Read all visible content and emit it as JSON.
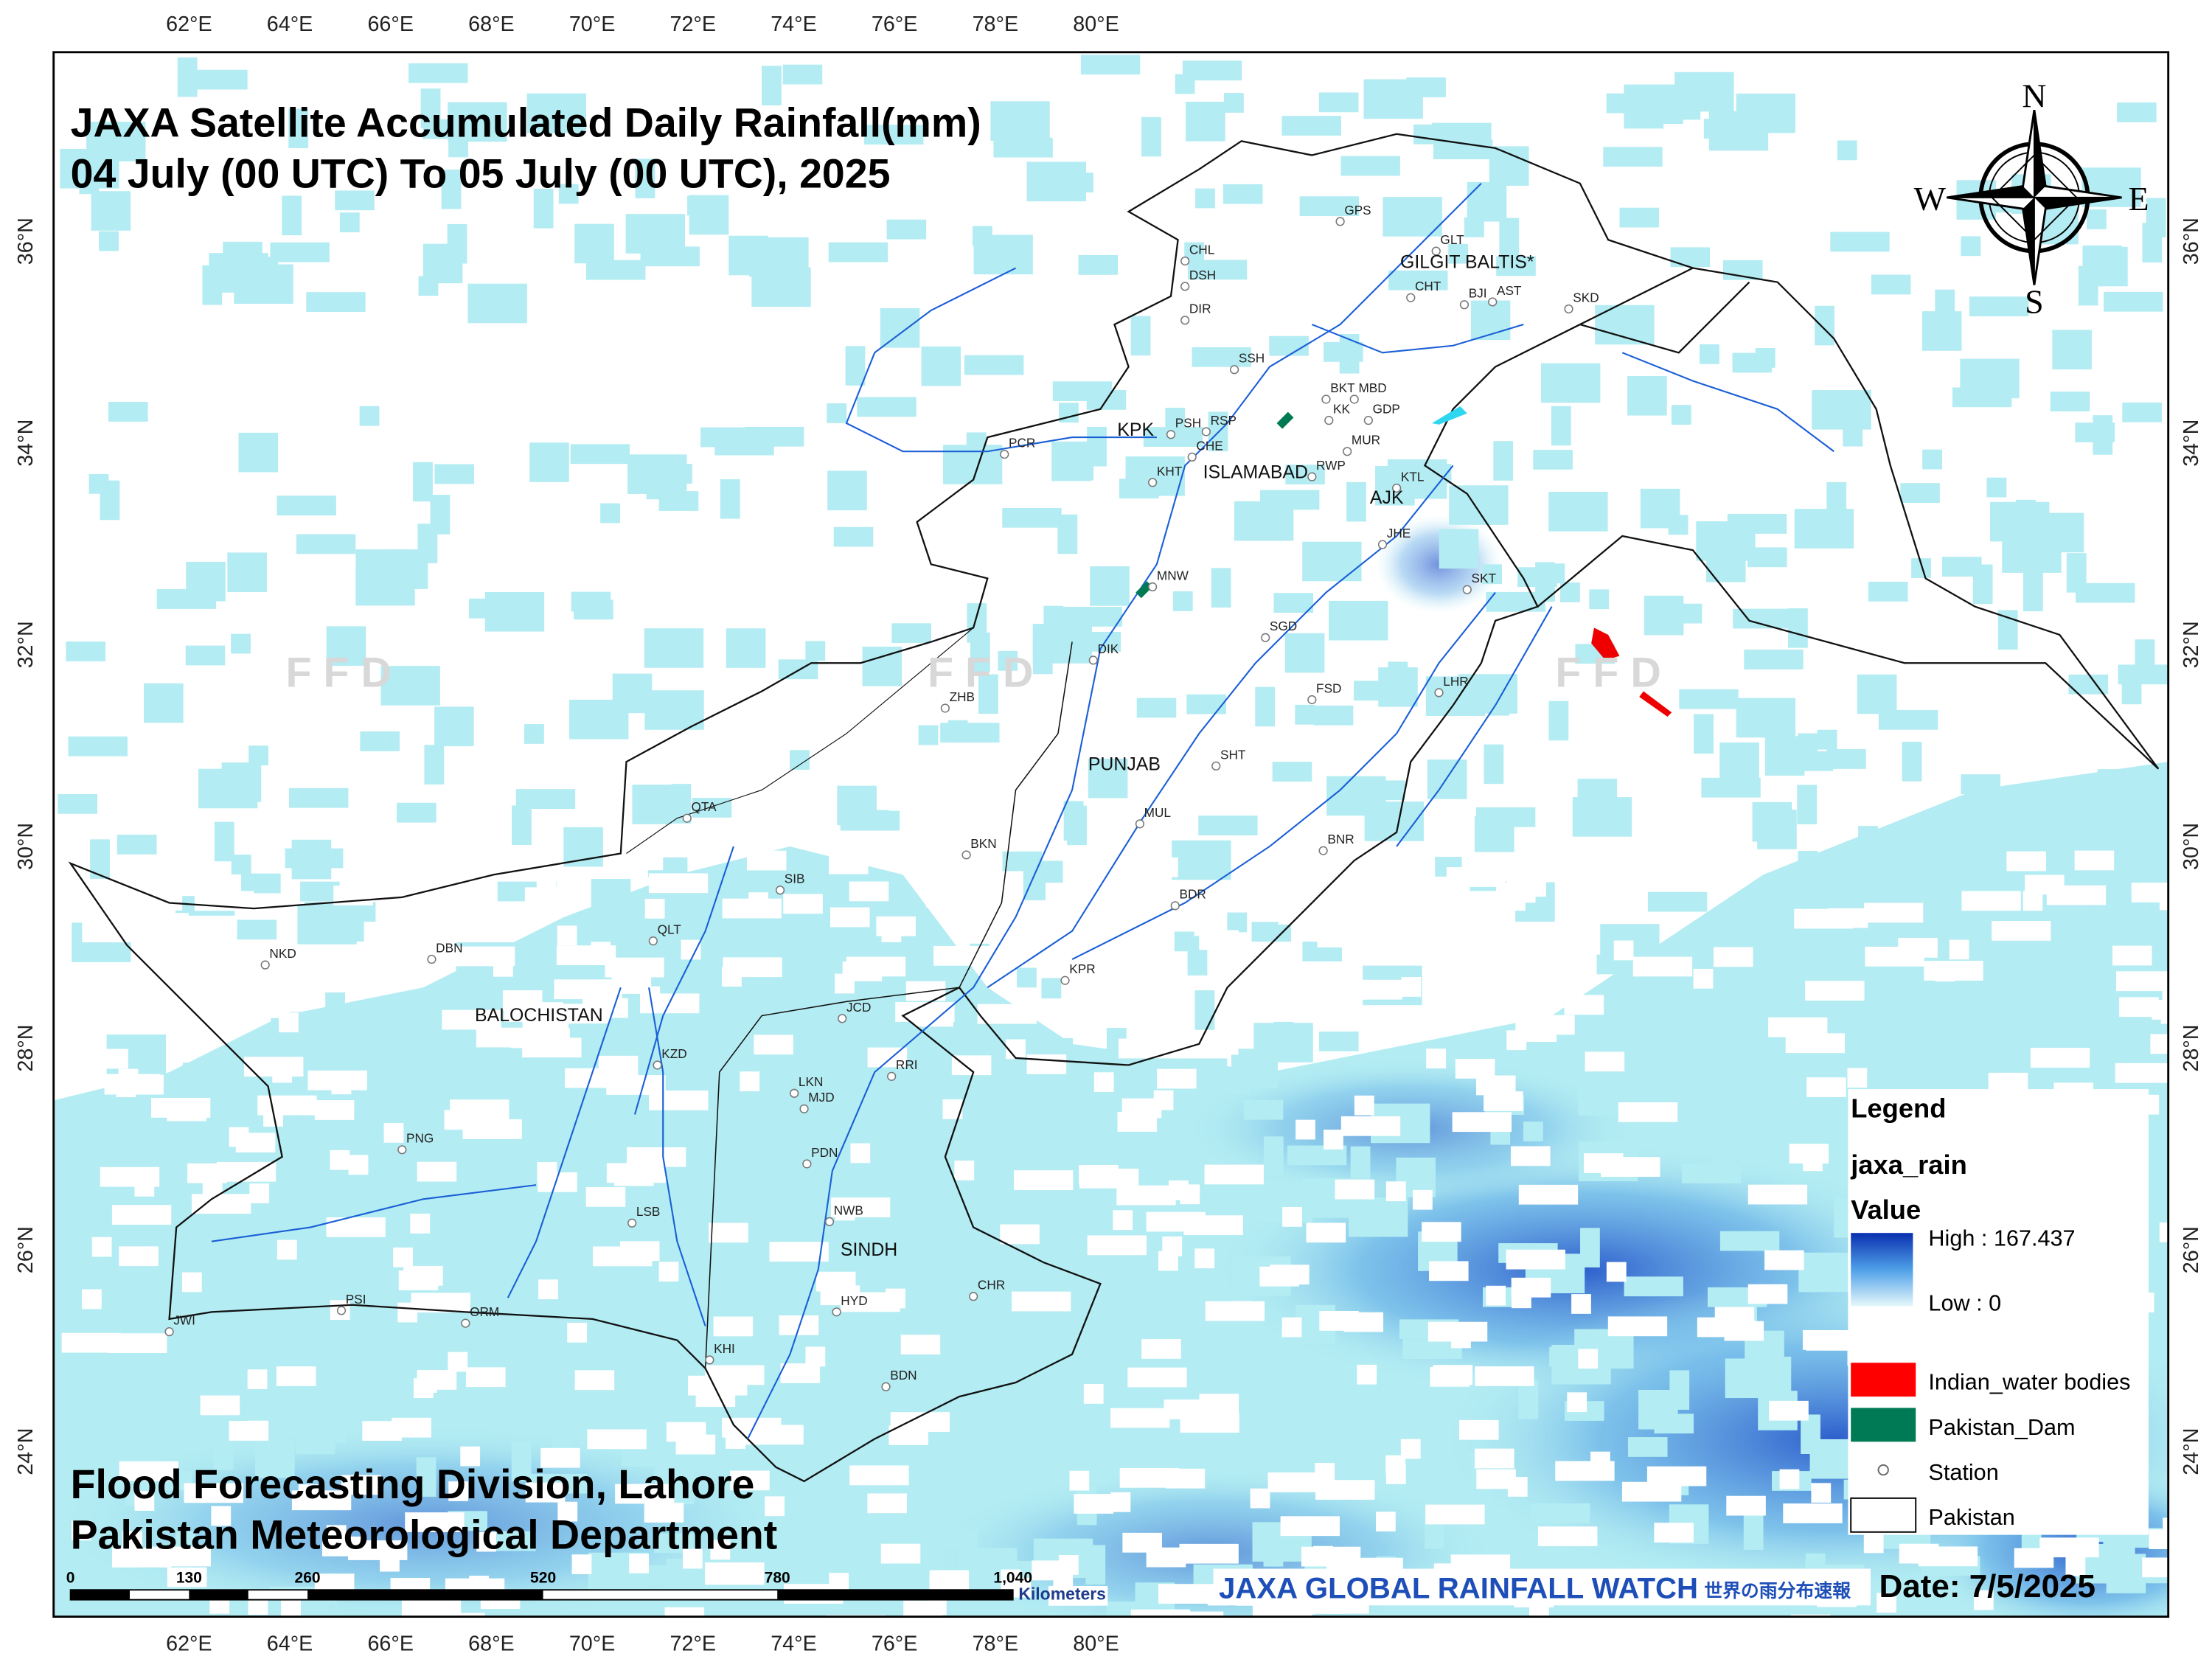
{
  "title": {
    "line1": "JAXA Satellite Accumulated Daily Rainfall(mm)",
    "line2": "04 July (00 UTC) To 05 July (00 UTC), 2025"
  },
  "axes": {
    "lon_top": [
      "62°E",
      "64°E",
      "66°E",
      "68°E",
      "70°E",
      "72°E",
      "74°E",
      "76°E",
      "78°E",
      "80°E"
    ],
    "lon_bottom": [
      "62°E",
      "64°E",
      "66°E",
      "68°E",
      "70°E",
      "72°E",
      "74°E",
      "76°E",
      "78°E",
      "80°E"
    ],
    "lat_left": [
      "36°N",
      "34°N",
      "32°N",
      "30°N",
      "28°N",
      "26°N",
      "24°N"
    ],
    "lat_right": [
      "36°N",
      "34°N",
      "32°N",
      "30°N",
      "28°N",
      "26°N",
      "24°N"
    ]
  },
  "watermarks": [
    "F F D",
    "F F D",
    "F F D"
  ],
  "regions": [
    "GILGIT BALTIS*",
    "KPK",
    "ISLAMABAD",
    "AJK",
    "PUNJAB",
    "BALOCHISTAN",
    "SINDH"
  ],
  "stations": [
    "GPS",
    "GLT",
    "CHT",
    "BJI",
    "AST",
    "SKD",
    "CHL",
    "DSH",
    "DIR",
    "SSH",
    "BKT",
    "MBD",
    "KK",
    "GDP",
    "RSP",
    "PSH",
    "MUR",
    "CHE",
    "KHT",
    "RWP",
    "PCR",
    "KTL",
    "JHE",
    "SKT",
    "MNW",
    "DIK",
    "SGD",
    "ZHB",
    "FSD",
    "LHR",
    "SHT",
    "QTA",
    "MUL",
    "BKN",
    "BNR",
    "SIB",
    "BDR",
    "QLT",
    "NKD",
    "DBN",
    "KPR",
    "JCD",
    "KZD",
    "RRI",
    "LKN",
    "MJD",
    "PNG",
    "PDN",
    "LSB",
    "NWB",
    "PSI",
    "ORM",
    "JWI",
    "HYD",
    "CHR",
    "KHI",
    "BDN"
  ],
  "compass": {
    "n": "N",
    "e": "E",
    "s": "S",
    "w": "W"
  },
  "legend": {
    "title": "Legend",
    "layer": "jaxa_rain",
    "field": "Value",
    "high": "High : 167.437",
    "low": "Low : 0",
    "items": [
      "Indian_water bodies",
      "Pakistan_Dam",
      "Station",
      "Pakistan"
    ]
  },
  "footer": {
    "line1": "Flood Forecasting Division, Lahore",
    "line2": "Pakistan Meteorological Department"
  },
  "scale_bar": {
    "labels": [
      "0",
      "130",
      "260",
      "520",
      "780",
      "1,040"
    ],
    "unit": "Kilometers"
  },
  "logo": {
    "text": "JAXA GLOBAL RAINFALL WATCH",
    "jp": "世界の雨分布速報"
  },
  "date": "Date: 7/5/2025"
}
